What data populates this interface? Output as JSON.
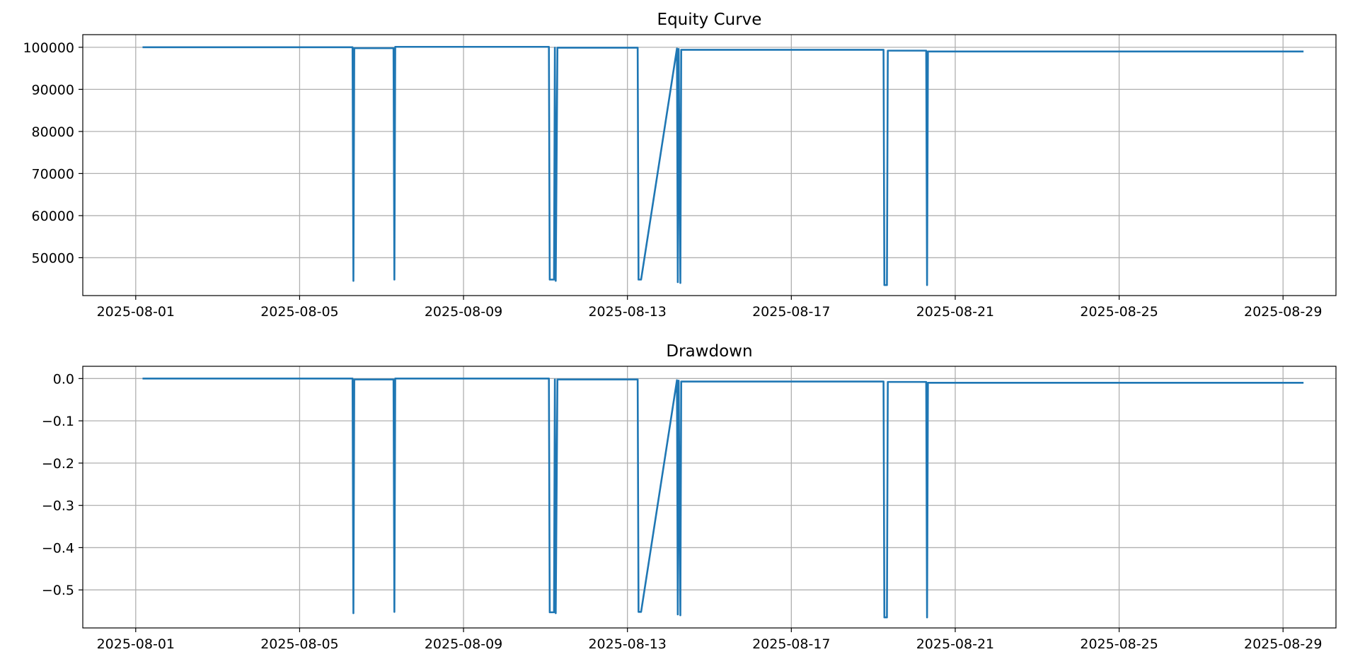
{
  "chart_data": [
    {
      "type": "line",
      "title": "Equity Curve",
      "xlabel": "",
      "ylabel": "",
      "x_ticks": [
        "2025-08-01",
        "2025-08-05",
        "2025-08-09",
        "2025-08-13",
        "2025-08-17",
        "2025-08-21",
        "2025-08-25",
        "2025-08-29"
      ],
      "y_ticks": [
        "50000",
        "60000",
        "70000",
        "80000",
        "90000",
        "100000"
      ],
      "xlim": [
        "2025-07-30T17:00",
        "2025-08-30T07:00"
      ],
      "ylim": [
        41000,
        103000
      ],
      "grid": true,
      "series": [
        {
          "color": "#1f77b4",
          "x": [
            "2025-08-01T04:00",
            "2025-08-06T07:00",
            "2025-08-06T07:30",
            "2025-08-06T08:00",
            "2025-08-07T07:00",
            "2025-08-07T07:30",
            "2025-08-07T08:00",
            "2025-08-11T02:00",
            "2025-08-11T02:30",
            "2025-08-11T05:00",
            "2025-08-11T05:30",
            "2025-08-11T06:00",
            "2025-08-11T07:00",
            "2025-08-11T07:30",
            "2025-08-13T06:00",
            "2025-08-13T06:30",
            "2025-08-13T08:00",
            "2025-08-14T05:00",
            "2025-08-14T05:30",
            "2025-08-14T06:00",
            "2025-08-14T07:00",
            "2025-08-14T07:30",
            "2025-08-19T06:00",
            "2025-08-19T06:30",
            "2025-08-19T08:00",
            "2025-08-19T08:30",
            "2025-08-20T07:00",
            "2025-08-20T07:30",
            "2025-08-20T08:00",
            "2025-08-29T12:00"
          ],
          "y": [
            100000,
            100000,
            44500,
            99800,
            99800,
            44800,
            100100,
            100100,
            44800,
            44800,
            99900,
            44500,
            99900,
            99900,
            99900,
            44800,
            44800,
            99700,
            44200,
            99600,
            44000,
            99400,
            99400,
            43500,
            43500,
            99200,
            99200,
            43500,
            99000,
            99000
          ]
        }
      ]
    },
    {
      "type": "line",
      "title": "Drawdown",
      "xlabel": "",
      "ylabel": "",
      "x_ticks": [
        "2025-08-01",
        "2025-08-05",
        "2025-08-09",
        "2025-08-13",
        "2025-08-17",
        "2025-08-21",
        "2025-08-25",
        "2025-08-29"
      ],
      "y_ticks": [
        "0.0",
        "−0.1",
        "−0.2",
        "−0.3",
        "−0.4",
        "−0.5"
      ],
      "xlim": [
        "2025-07-30T17:00",
        "2025-08-30T07:00"
      ],
      "ylim": [
        -0.59,
        0.029
      ],
      "grid": true,
      "series": [
        {
          "color": "#1f77b4",
          "x": [
            "2025-08-01T04:00",
            "2025-08-06T07:00",
            "2025-08-06T07:30",
            "2025-08-06T08:00",
            "2025-08-07T07:00",
            "2025-08-07T07:30",
            "2025-08-07T08:00",
            "2025-08-11T02:00",
            "2025-08-11T02:30",
            "2025-08-11T05:00",
            "2025-08-11T05:30",
            "2025-08-11T06:00",
            "2025-08-11T07:00",
            "2025-08-11T07:30",
            "2025-08-13T06:00",
            "2025-08-13T06:30",
            "2025-08-13T08:00",
            "2025-08-14T05:00",
            "2025-08-14T05:30",
            "2025-08-14T06:00",
            "2025-08-14T07:00",
            "2025-08-14T07:30",
            "2025-08-19T06:00",
            "2025-08-19T06:30",
            "2025-08-19T08:00",
            "2025-08-19T08:30",
            "2025-08-20T07:00",
            "2025-08-20T07:30",
            "2025-08-20T08:00",
            "2025-08-29T12:00"
          ],
          "y": [
            0,
            0,
            -0.555,
            -0.002,
            -0.002,
            -0.552,
            0,
            0,
            -0.553,
            -0.553,
            -0.002,
            -0.555,
            -0.002,
            -0.002,
            -0.002,
            -0.552,
            -0.552,
            -0.004,
            -0.558,
            -0.005,
            -0.56,
            -0.007,
            -0.007,
            -0.565,
            -0.565,
            -0.008,
            -0.008,
            -0.565,
            -0.01,
            -0.01
          ]
        }
      ]
    }
  ]
}
